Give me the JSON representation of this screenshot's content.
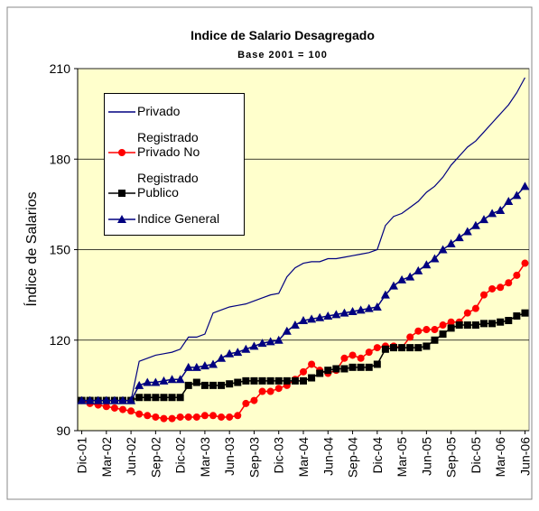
{
  "chart_data": {
    "type": "line",
    "title": "Indice de Salario Desagregado",
    "subtitle": "Base 2001 = 100",
    "y_label": "Índice de Salarios",
    "categories": [
      "Dic-01",
      null,
      null,
      "Mar-02",
      null,
      null,
      "Jun-02",
      null,
      null,
      "Sep-02",
      null,
      null,
      "Dic-02",
      null,
      null,
      "Mar-03",
      null,
      null,
      "Jun-03",
      null,
      null,
      "Sep-03",
      null,
      null,
      "Dic-03",
      null,
      null,
      "Mar-04",
      null,
      null,
      "Jun-04",
      null,
      null,
      "Sep-04",
      null,
      null,
      "Dic-04",
      null,
      null,
      "Mar-05",
      null,
      null,
      "Jun-05",
      null,
      null,
      "Sep-05",
      null,
      null,
      "Dic-05",
      null,
      null,
      "Mar-06",
      null,
      null,
      "Jun-06"
    ],
    "series": [
      {
        "name": "Privado",
        "color": "#000080",
        "marker": "none",
        "values": [
          100,
          100,
          100,
          100,
          100,
          100,
          100,
          113,
          114,
          115,
          115.5,
          116,
          117,
          121,
          121,
          122,
          129,
          130,
          131,
          131.5,
          132,
          133,
          134,
          135,
          135.5,
          141,
          144,
          145.5,
          146,
          146,
          147,
          147,
          147.5,
          148,
          148.5,
          149,
          150,
          158,
          161,
          162,
          164,
          166,
          169,
          171,
          174,
          178,
          181,
          184,
          186,
          189,
          192,
          195,
          198,
          202,
          207
        ]
      },
      {
        "name": "Registrado Privado No",
        "color": "#ff0000",
        "marker": "circle",
        "values": [
          100,
          99,
          98.5,
          98,
          97.5,
          97,
          96.5,
          95.5,
          95,
          94.5,
          94,
          94,
          94.5,
          94.5,
          94.5,
          95,
          95,
          94.5,
          94.5,
          95,
          99,
          100,
          103,
          103,
          104,
          105,
          107,
          109.5,
          112,
          110,
          109,
          110,
          114,
          115,
          114,
          116,
          117.5,
          118,
          118,
          117.5,
          121,
          123,
          123.5,
          123.5,
          125,
          126,
          126,
          129,
          130.5,
          135,
          137,
          137.5,
          139,
          141.5,
          145.5
        ]
      },
      {
        "name": "Registrado Publico",
        "color": "#000000",
        "marker": "square",
        "values": [
          100,
          100,
          100,
          100,
          100,
          100,
          100,
          101,
          101,
          101,
          101,
          101,
          101,
          105,
          106,
          105,
          105,
          105,
          105.5,
          106,
          106.5,
          106.5,
          106.5,
          106.5,
          106.5,
          106.5,
          106.5,
          106.5,
          107.5,
          109,
          110,
          110.5,
          110.5,
          111,
          111,
          111,
          112,
          117,
          117.5,
          117.5,
          117.5,
          117.5,
          118,
          120,
          122,
          124,
          125,
          125,
          125,
          125.5,
          125.5,
          126,
          126.5,
          128,
          129
        ]
      },
      {
        "name": "Indice General",
        "color": "#000080",
        "marker": "triangle",
        "values": [
          100,
          100,
          100,
          100,
          100,
          100,
          100,
          105,
          106,
          106,
          106.5,
          107,
          107,
          111,
          111,
          111.5,
          112,
          114,
          115.5,
          116,
          117,
          118,
          119,
          119.5,
          120,
          123,
          125,
          126.5,
          127,
          127.5,
          128,
          128.5,
          129,
          129.5,
          130,
          130.5,
          131,
          135,
          138,
          140,
          141,
          143,
          145,
          147,
          150,
          152,
          154,
          156,
          158,
          160,
          162,
          163,
          166,
          168,
          171
        ]
      }
    ],
    "ylim": [
      90,
      210
    ],
    "yticks": [
      90,
      120,
      150,
      180,
      210
    ],
    "grid": true,
    "background": "#ffffcc",
    "legend": "upper left"
  }
}
